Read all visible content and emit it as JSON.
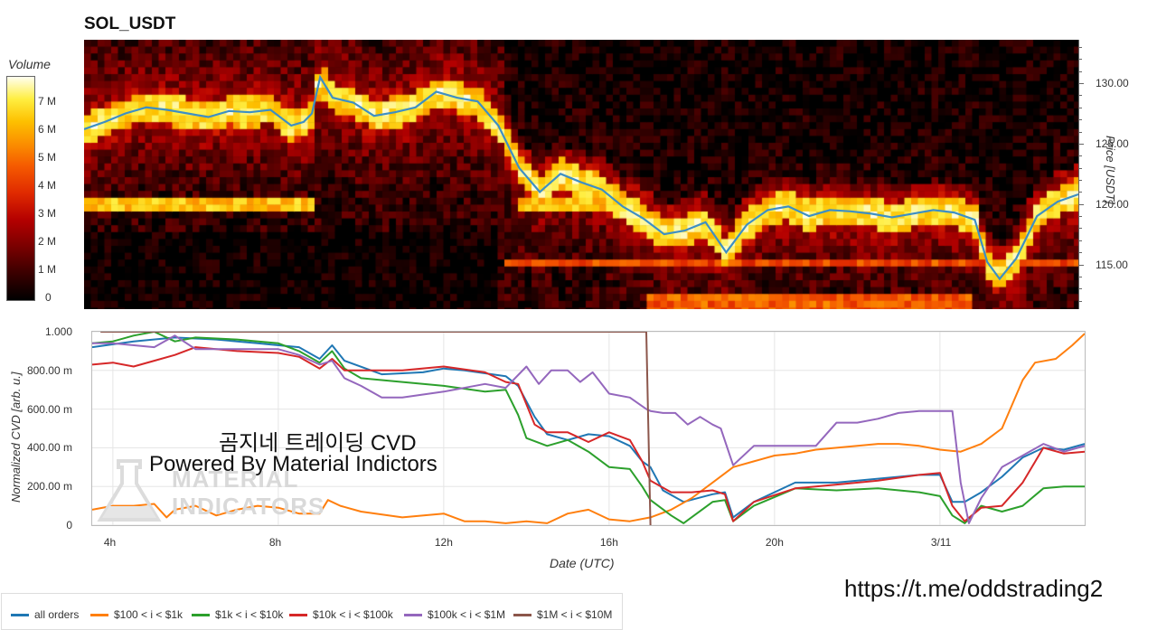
{
  "title": "SOL_USDT",
  "colorbar": {
    "label": "Volume",
    "ticks": [
      "7 M",
      "6 M",
      "5 M",
      "4 M",
      "3 M",
      "2 M",
      "1 M",
      "0"
    ],
    "colors": [
      "#000000",
      "#3a0000",
      "#7a0000",
      "#b40000",
      "#e02a00",
      "#f55a00",
      "#fb8f00",
      "#fdc000",
      "#ffee40",
      "#fffff0"
    ]
  },
  "watermark": {
    "line1": "곰지네 트레이딩 CVD",
    "line2": "Powered By Material Indictors",
    "logo_line1": "MATERIAL",
    "logo_line2": "INDICATORS"
  },
  "url": "https://t.me/oddstrading2",
  "chart_data": [
    {
      "type": "heatmap",
      "title": "SOL_USDT",
      "colorbar_label": "Volume",
      "colorbar_range": [
        0,
        8000000
      ],
      "ylabel": "Price [USDT]",
      "yticks": [
        "115.00",
        "120.00",
        "125.00",
        "130.00"
      ],
      "ylim": [
        111.3,
        133.6
      ],
      "xlim": [
        3.5,
        27.5
      ],
      "price_line_color": "#3d8fc4",
      "price_series": {
        "x": [
          3.5,
          4.0,
          4.5,
          5.0,
          5.5,
          6.0,
          6.5,
          7.0,
          7.5,
          8.0,
          8.5,
          8.8,
          9.0,
          9.2,
          9.5,
          10.0,
          10.5,
          11.0,
          11.5,
          12.0,
          12.5,
          13.0,
          13.5,
          14.0,
          14.5,
          15.0,
          15.5,
          16.0,
          16.5,
          17.0,
          17.5,
          18.0,
          18.5,
          19.0,
          19.5,
          20.0,
          20.5,
          21.0,
          21.5,
          22.0,
          22.5,
          23.0,
          23.5,
          24.0,
          24.5,
          25.0,
          25.3,
          25.6,
          26.0,
          26.5,
          27.0,
          27.5
        ],
        "y": [
          126.2,
          126.8,
          127.5,
          128.0,
          127.8,
          127.5,
          127.2,
          127.7,
          127.6,
          127.8,
          126.5,
          126.8,
          127.5,
          130.5,
          128.8,
          128.4,
          127.3,
          127.6,
          128.0,
          129.3,
          128.8,
          128.5,
          126.5,
          123.0,
          121.0,
          122.5,
          121.8,
          121.2,
          119.8,
          118.8,
          117.5,
          117.8,
          118.5,
          116.0,
          118.3,
          119.5,
          119.8,
          119.0,
          119.5,
          119.4,
          119.2,
          118.9,
          119.2,
          119.5,
          119.3,
          118.7,
          115.2,
          113.8,
          115.5,
          119.0,
          120.2,
          120.8
        ]
      }
    },
    {
      "type": "line",
      "xlabel": "Date (UTC)",
      "ylabel": "Normalized CVD [arb. u.]",
      "x_ticks": [
        {
          "label": "4h",
          "x": 4
        },
        {
          "label": "8h",
          "x": 8
        },
        {
          "label": "12h",
          "x": 12
        },
        {
          "label": "16h",
          "x": 16
        },
        {
          "label": "20h",
          "x": 20
        },
        {
          "label": "3/11",
          "x": 24
        }
      ],
      "y_ticks": [
        {
          "label": "0",
          "v": 0
        },
        {
          "label": "200.00 m",
          "v": 0.2
        },
        {
          "label": "400.00 m",
          "v": 0.4
        },
        {
          "label": "600.00 m",
          "v": 0.6
        },
        {
          "label": "800.00 m",
          "v": 0.8
        },
        {
          "label": "1.000",
          "v": 1.0
        }
      ],
      "xlim": [
        3.5,
        27.5
      ],
      "ylim": [
        0,
        1
      ],
      "grid": true,
      "legend_position": "bottom",
      "series": [
        {
          "name": "all orders",
          "color": "#1f77b4",
          "x": [
            3.5,
            4.5,
            5.5,
            6.5,
            7.5,
            8.5,
            9.0,
            9.3,
            9.6,
            10.5,
            11.5,
            12.0,
            12.5,
            13.5,
            13.8,
            14.2,
            14.5,
            15.0,
            15.5,
            16.0,
            16.5,
            16.8,
            17.0,
            17.3,
            17.8,
            18.5,
            18.8,
            19.0,
            19.5,
            20.5,
            21.5,
            22.5,
            23.5,
            24.0,
            24.3,
            24.6,
            25.0,
            25.5,
            26.0,
            26.5,
            27.0,
            27.5
          ],
          "y": [
            0.92,
            0.95,
            0.97,
            0.96,
            0.94,
            0.92,
            0.86,
            0.93,
            0.85,
            0.78,
            0.79,
            0.81,
            0.8,
            0.77,
            0.72,
            0.56,
            0.47,
            0.44,
            0.47,
            0.46,
            0.41,
            0.33,
            0.3,
            0.18,
            0.12,
            0.16,
            0.17,
            0.04,
            0.12,
            0.22,
            0.22,
            0.24,
            0.26,
            0.26,
            0.12,
            0.12,
            0.17,
            0.25,
            0.35,
            0.4,
            0.39,
            0.42
          ]
        },
        {
          "name": "$100 < i < $1k",
          "color": "#ff7f0e",
          "x": [
            3.5,
            4.0,
            4.5,
            5.0,
            5.3,
            5.5,
            6.0,
            6.5,
            7.0,
            7.5,
            8.0,
            8.5,
            9.0,
            9.2,
            9.5,
            10.0,
            11.0,
            12.0,
            12.5,
            13.0,
            13.5,
            14.0,
            14.5,
            15.0,
            15.5,
            16.0,
            16.5,
            17.0,
            17.5,
            18.0,
            18.5,
            19.0,
            19.5,
            20.0,
            20.5,
            21.0,
            21.5,
            22.0,
            22.5,
            23.0,
            23.5,
            24.0,
            24.5,
            25.0,
            25.5,
            26.0,
            26.3,
            26.8,
            27.2,
            27.5
          ],
          "y": [
            0.08,
            0.1,
            0.1,
            0.11,
            0.04,
            0.08,
            0.1,
            0.05,
            0.08,
            0.1,
            0.09,
            0.06,
            0.06,
            0.13,
            0.1,
            0.07,
            0.04,
            0.06,
            0.02,
            0.02,
            0.01,
            0.02,
            0.01,
            0.06,
            0.08,
            0.03,
            0.02,
            0.04,
            0.08,
            0.14,
            0.22,
            0.3,
            0.33,
            0.36,
            0.37,
            0.39,
            0.4,
            0.41,
            0.42,
            0.42,
            0.41,
            0.39,
            0.38,
            0.42,
            0.5,
            0.75,
            0.84,
            0.86,
            0.93,
            0.99
          ]
        },
        {
          "name": "$1k < i < $10k",
          "color": "#2ca02c",
          "x": [
            3.5,
            4.0,
            4.5,
            5.0,
            5.5,
            6.0,
            7.0,
            8.0,
            8.5,
            9.0,
            9.3,
            9.6,
            10.0,
            11.0,
            12.0,
            13.0,
            13.5,
            13.8,
            14.0,
            14.5,
            15.0,
            15.5,
            16.0,
            16.5,
            16.8,
            17.0,
            17.5,
            17.8,
            18.5,
            18.8,
            19.0,
            19.5,
            20.5,
            21.5,
            22.5,
            23.5,
            24.0,
            24.3,
            24.6,
            25.0,
            25.5,
            26.0,
            26.5,
            27.0,
            27.5
          ],
          "y": [
            0.94,
            0.95,
            0.98,
            1.0,
            0.95,
            0.97,
            0.96,
            0.94,
            0.9,
            0.84,
            0.9,
            0.81,
            0.76,
            0.74,
            0.72,
            0.69,
            0.7,
            0.57,
            0.45,
            0.41,
            0.44,
            0.38,
            0.3,
            0.29,
            0.2,
            0.13,
            0.05,
            0.01,
            0.12,
            0.13,
            0.02,
            0.1,
            0.19,
            0.18,
            0.19,
            0.17,
            0.15,
            0.05,
            0.01,
            0.1,
            0.07,
            0.1,
            0.19,
            0.2,
            0.2
          ]
        },
        {
          "name": "$10k < i < $100k",
          "color": "#d62728",
          "x": [
            3.5,
            4.0,
            4.5,
            5.0,
            5.5,
            6.0,
            7.0,
            8.0,
            8.5,
            9.0,
            9.3,
            9.6,
            10.0,
            11.0,
            12.0,
            13.0,
            13.5,
            13.8,
            14.2,
            14.5,
            15.0,
            15.5,
            16.0,
            16.5,
            16.8,
            17.0,
            17.5,
            18.0,
            18.5,
            18.8,
            19.0,
            19.5,
            20.5,
            21.5,
            22.5,
            23.5,
            24.0,
            24.3,
            24.6,
            25.0,
            25.5,
            26.0,
            26.5,
            27.0,
            27.5
          ],
          "y": [
            0.83,
            0.84,
            0.82,
            0.85,
            0.88,
            0.92,
            0.9,
            0.89,
            0.87,
            0.81,
            0.86,
            0.8,
            0.8,
            0.8,
            0.82,
            0.79,
            0.74,
            0.73,
            0.52,
            0.48,
            0.48,
            0.43,
            0.48,
            0.44,
            0.33,
            0.23,
            0.17,
            0.17,
            0.18,
            0.16,
            0.02,
            0.12,
            0.19,
            0.21,
            0.23,
            0.26,
            0.27,
            0.1,
            0.02,
            0.09,
            0.1,
            0.22,
            0.4,
            0.37,
            0.38
          ]
        },
        {
          "name": "$100k < i < $1M",
          "color": "#9467bd",
          "x": [
            3.5,
            4.0,
            5.0,
            5.5,
            6.0,
            7.0,
            8.0,
            8.5,
            9.0,
            9.3,
            9.6,
            10.0,
            10.5,
            11.0,
            12.0,
            13.0,
            13.5,
            14.0,
            14.3,
            14.6,
            15.0,
            15.3,
            15.6,
            16.0,
            16.5,
            16.9,
            17.0,
            17.3,
            17.6,
            17.9,
            18.2,
            18.5,
            18.7,
            19.0,
            19.5,
            20.0,
            20.5,
            21.0,
            21.5,
            22.0,
            22.5,
            23.0,
            23.5,
            24.0,
            24.3,
            24.5,
            24.7,
            25.0,
            25.5,
            26.0,
            26.5,
            27.0,
            27.5
          ],
          "y": [
            0.94,
            0.94,
            0.92,
            0.98,
            0.91,
            0.91,
            0.91,
            0.88,
            0.83,
            0.85,
            0.76,
            0.72,
            0.66,
            0.66,
            0.69,
            0.73,
            0.71,
            0.82,
            0.73,
            0.8,
            0.8,
            0.74,
            0.79,
            0.68,
            0.66,
            0.6,
            0.59,
            0.58,
            0.58,
            0.52,
            0.56,
            0.52,
            0.5,
            0.31,
            0.41,
            0.41,
            0.41,
            0.41,
            0.53,
            0.53,
            0.55,
            0.58,
            0.59,
            0.59,
            0.59,
            0.22,
            0.01,
            0.14,
            0.3,
            0.36,
            0.42,
            0.38,
            0.41
          ]
        },
        {
          "name": "$1M < i < $10M",
          "color": "#8c564b",
          "x": [
            3.7,
            16.9,
            16.95,
            17.0
          ],
          "y": [
            1.0,
            1.0,
            0.5,
            0.0
          ]
        }
      ]
    }
  ]
}
